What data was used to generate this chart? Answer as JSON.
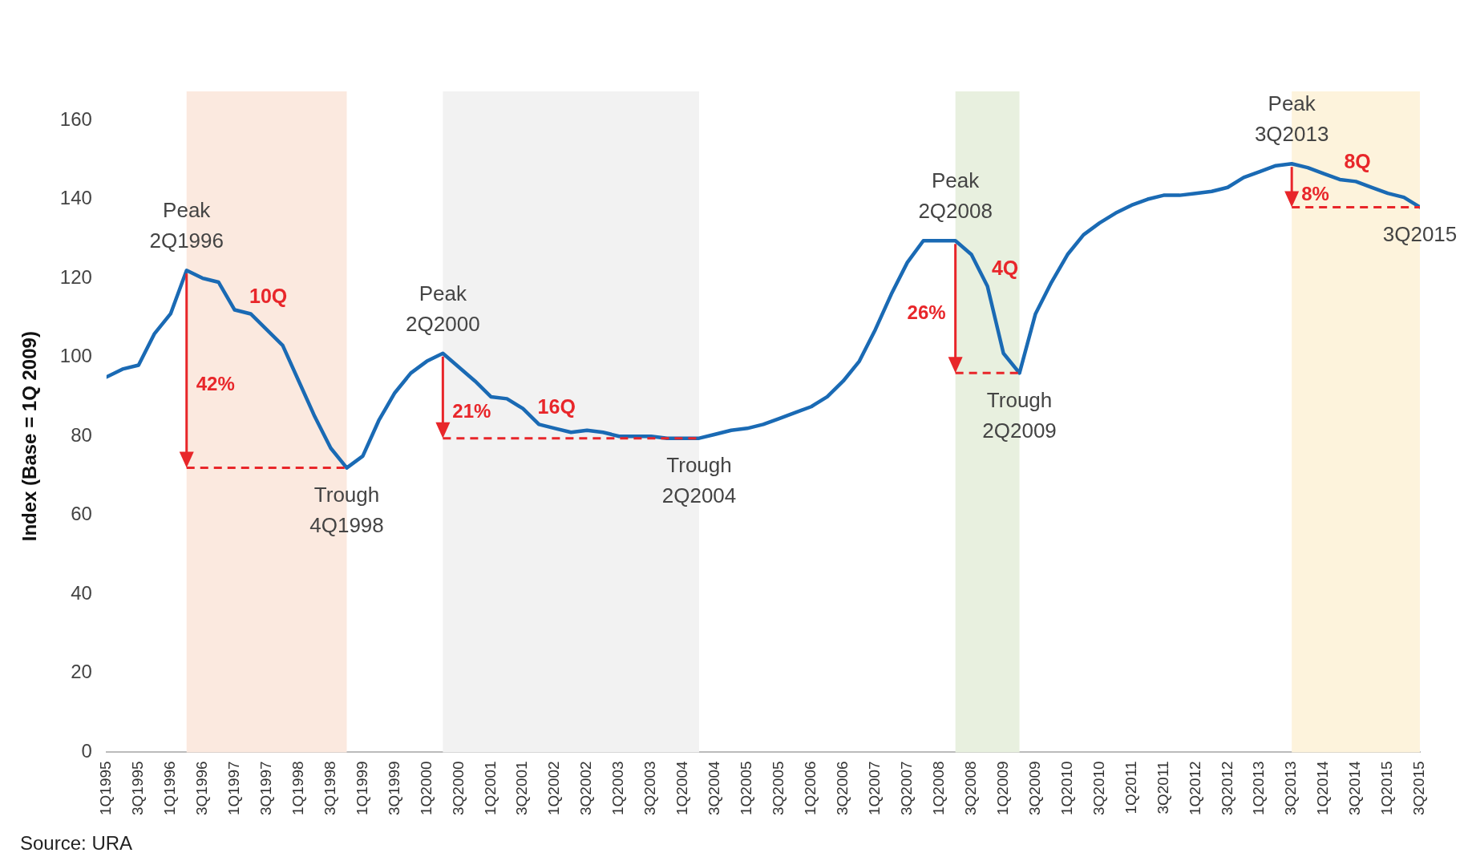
{
  "chart_data": {
    "type": "line",
    "ylabel": "Index (Base = 1Q 2009)",
    "x": [
      "1995-01",
      "1995-04",
      "1995-07",
      "1995-10",
      "1996-01",
      "1996-04",
      "1996-07",
      "1996-10",
      "1997-01",
      "1997-04",
      "1997-07",
      "1997-10",
      "1998-01",
      "1998-04",
      "1998-07",
      "1998-10",
      "1999-01",
      "1999-04",
      "1999-07",
      "1999-10",
      "2000-01",
      "2000-04",
      "2000-07",
      "2000-10",
      "2001-01",
      "2001-04",
      "2001-07",
      "2001-10",
      "2002-01",
      "2002-04",
      "2002-07",
      "2002-10",
      "2003-01",
      "2003-04",
      "2003-07",
      "2003-10",
      "2004-01",
      "2004-04",
      "2004-07",
      "2004-10",
      "2005-01",
      "2005-04",
      "2005-07",
      "2005-10",
      "2006-01",
      "2006-04",
      "2006-07",
      "2006-10",
      "2007-01",
      "2007-04",
      "2007-07",
      "2007-10",
      "2008-01",
      "2008-04",
      "2008-07",
      "2008-10",
      "2009-01",
      "2009-04",
      "2009-07",
      "2009-10",
      "2010-01",
      "2010-04",
      "2010-07",
      "2010-10",
      "2011-01",
      "2011-04",
      "2011-07",
      "2011-10",
      "2012-01",
      "2012-04",
      "2012-07",
      "2012-10",
      "2013-01",
      "2013-04",
      "2013-07",
      "2013-10",
      "2014-01",
      "2014-04",
      "2014-07",
      "2014-10",
      "2015-01",
      "2015-04",
      "2015-07"
    ],
    "series": [
      {
        "color": "#1a6ab4",
        "values": [
          95,
          97,
          98,
          106,
          111,
          122,
          120,
          119,
          112,
          111,
          107,
          103,
          94,
          85,
          77,
          72,
          75,
          84,
          91,
          96,
          99,
          101,
          97.5,
          94,
          90,
          89.5,
          87,
          83,
          82,
          81,
          81.5,
          81,
          80,
          80,
          80,
          79.5,
          79.5,
          79.5,
          80.5,
          81.5,
          82,
          83,
          84.5,
          86,
          87.5,
          90,
          94,
          99,
          107,
          116,
          124,
          129.5,
          129.5,
          129.5,
          126,
          118,
          101,
          96,
          111,
          119,
          126,
          131,
          134,
          136.5,
          138.5,
          140,
          141,
          141,
          141.5,
          142,
          143,
          145.5,
          147,
          148.5,
          149,
          148,
          146.5,
          145,
          144.5,
          143,
          141.5,
          140.5,
          138
        ]
      }
    ],
    "xlim": [
      "1995-01",
      "2015-07"
    ],
    "xticks": [
      {
        "value": "1995-01",
        "label": "1Q1995"
      },
      {
        "value": "1995-07",
        "label": "3Q1995"
      },
      {
        "value": "1996-01",
        "label": "1Q1996"
      },
      {
        "value": "1996-07",
        "label": "3Q1996"
      },
      {
        "value": "1997-01",
        "label": "1Q1997"
      },
      {
        "value": "1997-07",
        "label": "3Q1997"
      },
      {
        "value": "1998-01",
        "label": "1Q1998"
      },
      {
        "value": "1998-07",
        "label": "3Q1998"
      },
      {
        "value": "1999-01",
        "label": "1Q1999"
      },
      {
        "value": "1999-07",
        "label": "3Q1999"
      },
      {
        "value": "2000-01",
        "label": "1Q2000"
      },
      {
        "value": "2000-07",
        "label": "3Q2000"
      },
      {
        "value": "2001-01",
        "label": "1Q2001"
      },
      {
        "value": "2001-07",
        "label": "3Q2001"
      },
      {
        "value": "2002-01",
        "label": "1Q2002"
      },
      {
        "value": "2002-07",
        "label": "3Q2002"
      },
      {
        "value": "2003-01",
        "label": "1Q2003"
      },
      {
        "value": "2003-07",
        "label": "3Q2003"
      },
      {
        "value": "2004-01",
        "label": "1Q2004"
      },
      {
        "value": "2004-07",
        "label": "3Q2004"
      },
      {
        "value": "2005-01",
        "label": "1Q2005"
      },
      {
        "value": "2005-07",
        "label": "3Q2005"
      },
      {
        "value": "2006-01",
        "label": "1Q2006"
      },
      {
        "value": "2006-07",
        "label": "3Q2006"
      },
      {
        "value": "2007-01",
        "label": "1Q2007"
      },
      {
        "value": "2007-07",
        "label": "3Q2007"
      },
      {
        "value": "2008-01",
        "label": "1Q2008"
      },
      {
        "value": "2008-07",
        "label": "3Q2008"
      },
      {
        "value": "2009-01",
        "label": "1Q2009"
      },
      {
        "value": "2009-07",
        "label": "3Q2009"
      },
      {
        "value": "2010-01",
        "label": "1Q2010"
      },
      {
        "value": "2010-07",
        "label": "3Q2010"
      },
      {
        "value": "2011-01",
        "label": "1Q2011"
      },
      {
        "value": "2011-07",
        "label": "3Q2011"
      },
      {
        "value": "2012-01",
        "label": "1Q2012"
      },
      {
        "value": "2012-07",
        "label": "3Q2012"
      },
      {
        "value": "2013-01",
        "label": "1Q2013"
      },
      {
        "value": "2013-07",
        "label": "3Q2013"
      },
      {
        "value": "2014-01",
        "label": "1Q2014"
      },
      {
        "value": "2014-07",
        "label": "3Q2014"
      },
      {
        "value": "2015-01",
        "label": "1Q2015"
      },
      {
        "value": "2015-07",
        "label": "3Q2015"
      }
    ],
    "ylim": [
      0,
      160
    ],
    "yticks": [
      0,
      20,
      40,
      60,
      80,
      100,
      120,
      140,
      160
    ],
    "grid": false,
    "legend": false,
    "marker": "none",
    "line_style": "solid",
    "bands": [
      {
        "axis": "x",
        "from": "1996-04",
        "to": "1998-10",
        "label": "10Q",
        "color": "#fbe9df"
      },
      {
        "axis": "x",
        "from": "2000-04",
        "to": "2004-04",
        "label": "16Q",
        "color": "#f2f2f2"
      },
      {
        "axis": "x",
        "from": "2008-04",
        "to": "2009-04",
        "label": "4Q",
        "color": "#e8f0df"
      },
      {
        "axis": "x",
        "from": "2013-07",
        "to": "2015-07",
        "label": "8Q",
        "color": "#fdf3dc"
      }
    ],
    "annotations": [
      {
        "text": "Peak\n2Q1996",
        "x": "1996-04",
        "y": 122
      },
      {
        "text": "Trough\n4Q1998",
        "x": "1998-10",
        "y": 72
      },
      {
        "text": "Peak\n2Q2000",
        "x": "2000-04",
        "y": 101
      },
      {
        "text": "Trough\n2Q2004",
        "x": "2004-04",
        "y": 79.5
      },
      {
        "text": "Peak\n2Q2008",
        "x": "2008-04",
        "y": 129.5
      },
      {
        "text": "Trough\n2Q2009",
        "x": "2009-04",
        "y": 96
      },
      {
        "text": "Peak\n3Q2013",
        "x": "2013-07",
        "y": 149
      },
      {
        "text": "3Q2015",
        "x": "2015-07",
        "y": 138
      },
      {
        "text": "42%",
        "x": "1996-04",
        "y": 93
      },
      {
        "text": "21%",
        "x": "2000-04",
        "y": 86
      },
      {
        "text": "26%",
        "x": "2008-04",
        "y": 111
      },
      {
        "text": "8%",
        "x": "2013-07",
        "y": 141
      },
      "Source: URA"
    ]
  }
}
